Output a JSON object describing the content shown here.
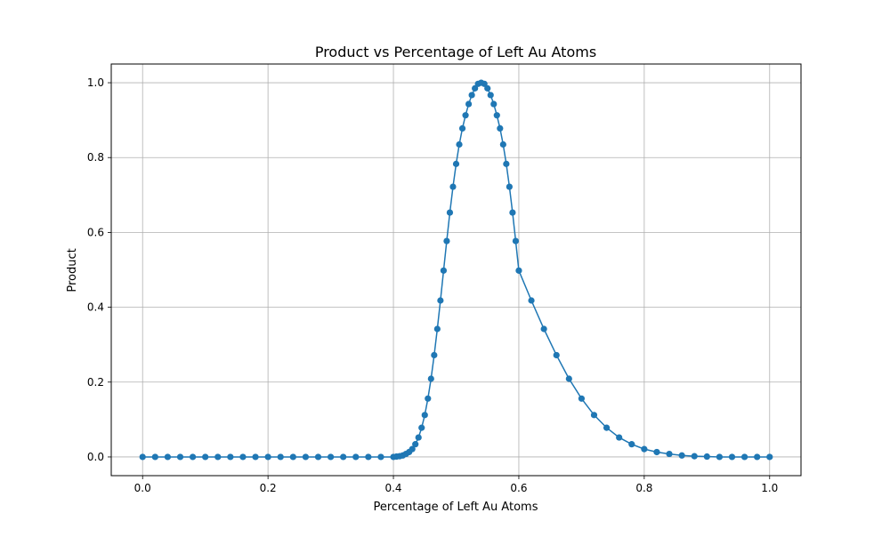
{
  "chart_data": {
    "type": "line",
    "title": "Product vs Percentage of Left Au Atoms",
    "xlabel": "Percentage of Left Au Atoms",
    "ylabel": "Product",
    "xlim": [
      -0.05,
      1.05
    ],
    "ylim": [
      -0.05,
      1.05
    ],
    "xticks": [
      0.0,
      0.2,
      0.4,
      0.6,
      0.8,
      1.0
    ],
    "xtick_labels": [
      "0.0",
      "0.2",
      "0.4",
      "0.6",
      "0.8",
      "1.0"
    ],
    "yticks": [
      0.0,
      0.2,
      0.4,
      0.6,
      0.8,
      1.0
    ],
    "ytick_labels": [
      "0.0",
      "0.2",
      "0.4",
      "0.6",
      "0.8",
      "1.0"
    ],
    "grid": true,
    "marker": "circle",
    "colors": {
      "series": "#1f77b4",
      "grid": "#b0b0b0",
      "axes": "#000000"
    },
    "series": [
      {
        "x": [
          0.0,
          0.02,
          0.04,
          0.06,
          0.08,
          0.1,
          0.12,
          0.14,
          0.16,
          0.18,
          0.2,
          0.22,
          0.24,
          0.26,
          0.28,
          0.3,
          0.32,
          0.34,
          0.36,
          0.38,
          0.4,
          0.405,
          0.41,
          0.415,
          0.42,
          0.425,
          0.43,
          0.435,
          0.44,
          0.445,
          0.45,
          0.455,
          0.46,
          0.465,
          0.47,
          0.475,
          0.48,
          0.485,
          0.49,
          0.495,
          0.5,
          0.505,
          0.51,
          0.515,
          0.52,
          0.525,
          0.53,
          0.535,
          0.54,
          0.545,
          0.55,
          0.555,
          0.56,
          0.565,
          0.57,
          0.575,
          0.58,
          0.585,
          0.59,
          0.595,
          0.6,
          0.62,
          0.64,
          0.66,
          0.68,
          0.7,
          0.72,
          0.74,
          0.76,
          0.78,
          0.8,
          0.82,
          0.84,
          0.86,
          0.88,
          0.9,
          0.92,
          0.94,
          0.96,
          0.98,
          1.0
        ],
        "y": [
          0.0,
          0.0,
          0.0,
          0.0,
          0.0,
          0.0,
          0.0,
          0.0,
          0.0,
          0.0,
          0.0,
          0.0,
          0.0,
          0.0,
          0.0,
          0.0,
          0.0,
          0.0,
          0.0,
          0.0,
          0.0,
          0.001,
          0.002,
          0.004,
          0.008,
          0.013,
          0.021,
          0.034,
          0.052,
          0.078,
          0.112,
          0.156,
          0.209,
          0.272,
          0.342,
          0.418,
          0.498,
          0.577,
          0.653,
          0.722,
          0.783,
          0.835,
          0.878,
          0.913,
          0.943,
          0.967,
          0.985,
          0.997,
          1.0,
          0.997,
          0.985,
          0.967,
          0.943,
          0.913,
          0.878,
          0.835,
          0.783,
          0.722,
          0.653,
          0.577,
          0.498,
          0.418,
          0.342,
          0.272,
          0.209,
          0.156,
          0.112,
          0.078,
          0.052,
          0.034,
          0.021,
          0.013,
          0.008,
          0.004,
          0.002,
          0.001,
          0.0,
          0.0,
          0.0,
          0.0,
          0.0
        ]
      }
    ]
  }
}
